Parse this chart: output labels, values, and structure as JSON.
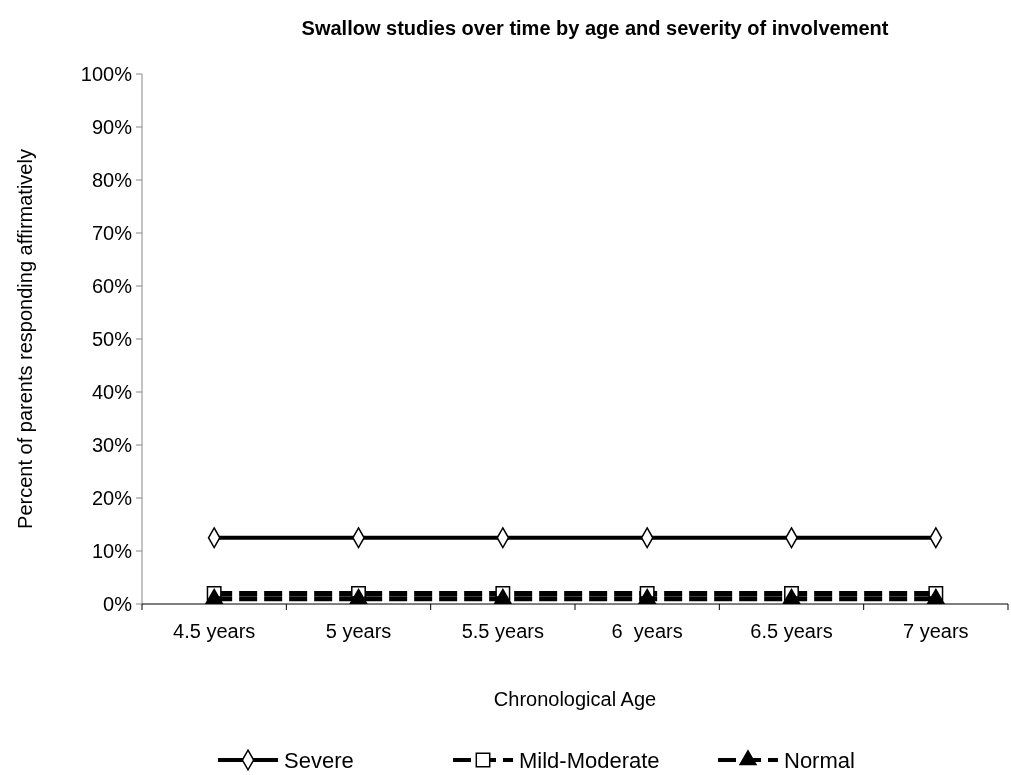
{
  "chart_data": {
    "type": "line",
    "title": "Swallow studies over time by age and severity of involvement",
    "xlabel": "Chronological Age",
    "ylabel": "Percent of parents responding affirmatively",
    "categories": [
      "4.5 years",
      "5 years",
      "5.5 years",
      "6  years",
      "6.5 years",
      "7 years"
    ],
    "series": [
      {
        "name": "Severe",
        "color": "#000000",
        "values": [
          12.5,
          12.5,
          12.5,
          12.5,
          12.5,
          12.5
        ],
        "marker": "diamond",
        "line_style": "solid"
      },
      {
        "name": "Mild-Moderate",
        "color": "#000000",
        "values": [
          2,
          2,
          2,
          2,
          2,
          2
        ],
        "marker": "square",
        "line_style": "dashed"
      },
      {
        "name": "Normal",
        "color": "#000000",
        "values": [
          1,
          1,
          1,
          1,
          1,
          1
        ],
        "marker": "triangle",
        "line_style": "dashed"
      }
    ],
    "ylim": [
      0,
      100
    ],
    "yticks": [
      {
        "value": 0,
        "label": "0%"
      },
      {
        "value": 10,
        "label": "10%"
      },
      {
        "value": 20,
        "label": "20%"
      },
      {
        "value": 30,
        "label": "30%"
      },
      {
        "value": 40,
        "label": "40%"
      },
      {
        "value": 50,
        "label": "50%"
      },
      {
        "value": 60,
        "label": "60%"
      },
      {
        "value": 70,
        "label": "70%"
      },
      {
        "value": 80,
        "label": "80%"
      },
      {
        "value": 90,
        "label": "90%"
      },
      {
        "value": 100,
        "label": "100%"
      }
    ],
    "grid": false,
    "legend": "bottom"
  }
}
